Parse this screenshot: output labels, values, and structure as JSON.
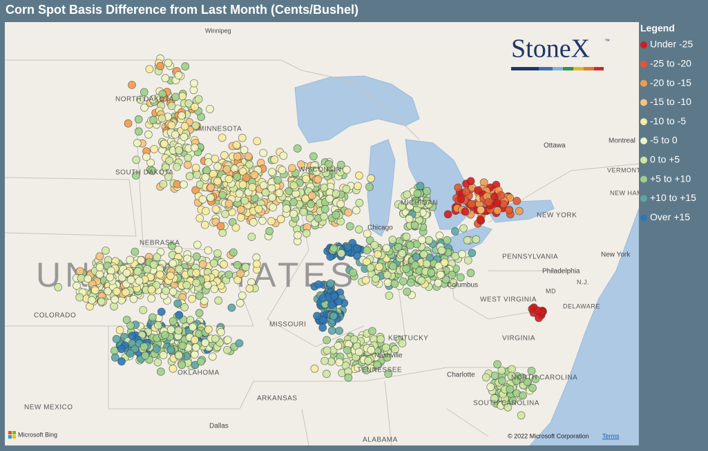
{
  "header": {
    "title": "Corn Spot Basis Difference from Last Month (Cents/Bushel)"
  },
  "logo": {
    "name": "StoneX",
    "mark": "™"
  },
  "legend": {
    "title": "Legend",
    "items": [
      {
        "label": "Under -25",
        "color": "#d7191c"
      },
      {
        "label": "-25 to -20",
        "color": "#e8552f"
      },
      {
        "label": "-20 to -15",
        "color": "#f39a4f"
      },
      {
        "label": "-15 to -10",
        "color": "#f9c27c"
      },
      {
        "label": "-10 to -5",
        "color": "#f8ec9e"
      },
      {
        "label": "-5 to 0",
        "color": "#eef5c2"
      },
      {
        "label": "0 to +5",
        "color": "#cfe8a2"
      },
      {
        "label": "+5 to +10",
        "color": "#9dd08a"
      },
      {
        "label": "+10 to +15",
        "color": "#5ca6a6"
      },
      {
        "label": "Over +15",
        "color": "#2b78b5"
      }
    ]
  },
  "map": {
    "labels": [
      "Winnipeg",
      "NORTH DAKOTA",
      "MINNESOTA",
      "SOUTH DAKOTA",
      "WISCONSIN",
      "MICHIGAN",
      "Chicago",
      "NEBRASKA",
      "UNITED STATES",
      "COLORADO",
      "MISSOURI",
      "KENTUCKY",
      "Nashville",
      "TENNESSEE",
      "OKLAHOMA",
      "ARKANSAS",
      "NEW MEXICO",
      "Dallas",
      "ALABAMA",
      "Charlotte",
      "NORTH CAROLINA",
      "SOUTH CAROLINA",
      "VIRGINIA",
      "WEST VIRGINIA",
      "Columbus",
      "PENNSYLVANIA",
      "Philadelphia",
      "NEW YORK",
      "New York",
      "Ottawa",
      "Montreal",
      "VERMONT",
      "NEW HAMPSHIRE",
      "MD",
      "DELAWARE",
      "N.J."
    ],
    "attribution": "Microsoft Bing",
    "copyright": "© 2022 Microsoft Corporation",
    "terms": "Terms"
  }
}
